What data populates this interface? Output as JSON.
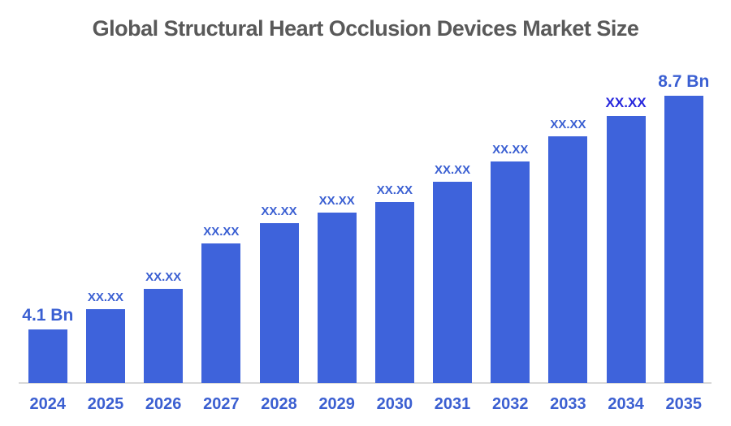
{
  "title": {
    "text": "Global Structural Heart Occlusion Devices Market Size"
  },
  "colors": {
    "bar_fill": "#3e63db",
    "value_label_text": "#3a5fd2",
    "highlight_label_text": "#2727dd",
    "year_label_text": "#3b5fd1",
    "title_text": "#595959",
    "axis_line": "#d8d8d8",
    "background": "#ffffff"
  },
  "chart_data": {
    "type": "bar",
    "title": "Global Structural Heart Occlusion Devices Market Size",
    "unit": "USD Bn",
    "xlabel": "",
    "ylabel": "",
    "grid": false,
    "legend": "none",
    "categories": [
      "2024",
      "2025",
      "2026",
      "2027",
      "2028",
      "2029",
      "2030",
      "2031",
      "2032",
      "2033",
      "2034",
      "2035"
    ],
    "bar_labels": [
      "4.1 Bn",
      "XX.XX",
      "XX.XX",
      "XX.XX",
      "XX.XX",
      "XX.XX",
      "XX.XX",
      "XX.XX",
      "XX.XX",
      "XX.XX",
      "XX.XX",
      "8.7 Bn"
    ],
    "label_styles": [
      "big",
      "normal",
      "normal",
      "normal",
      "normal",
      "normal",
      "normal",
      "normal",
      "normal",
      "normal",
      "highlight",
      "big"
    ],
    "values_estimated_bn": [
      4.1,
      4.5,
      4.9,
      5.8,
      6.2,
      6.4,
      6.6,
      7.0,
      7.4,
      7.9,
      8.3,
      8.7
    ],
    "known_values": {
      "2024": "4.1 Bn",
      "2035": "8.7 Bn"
    },
    "masked_value_text": "XX.XX",
    "ylim_implied": [
      3.05,
      8.7
    ]
  }
}
